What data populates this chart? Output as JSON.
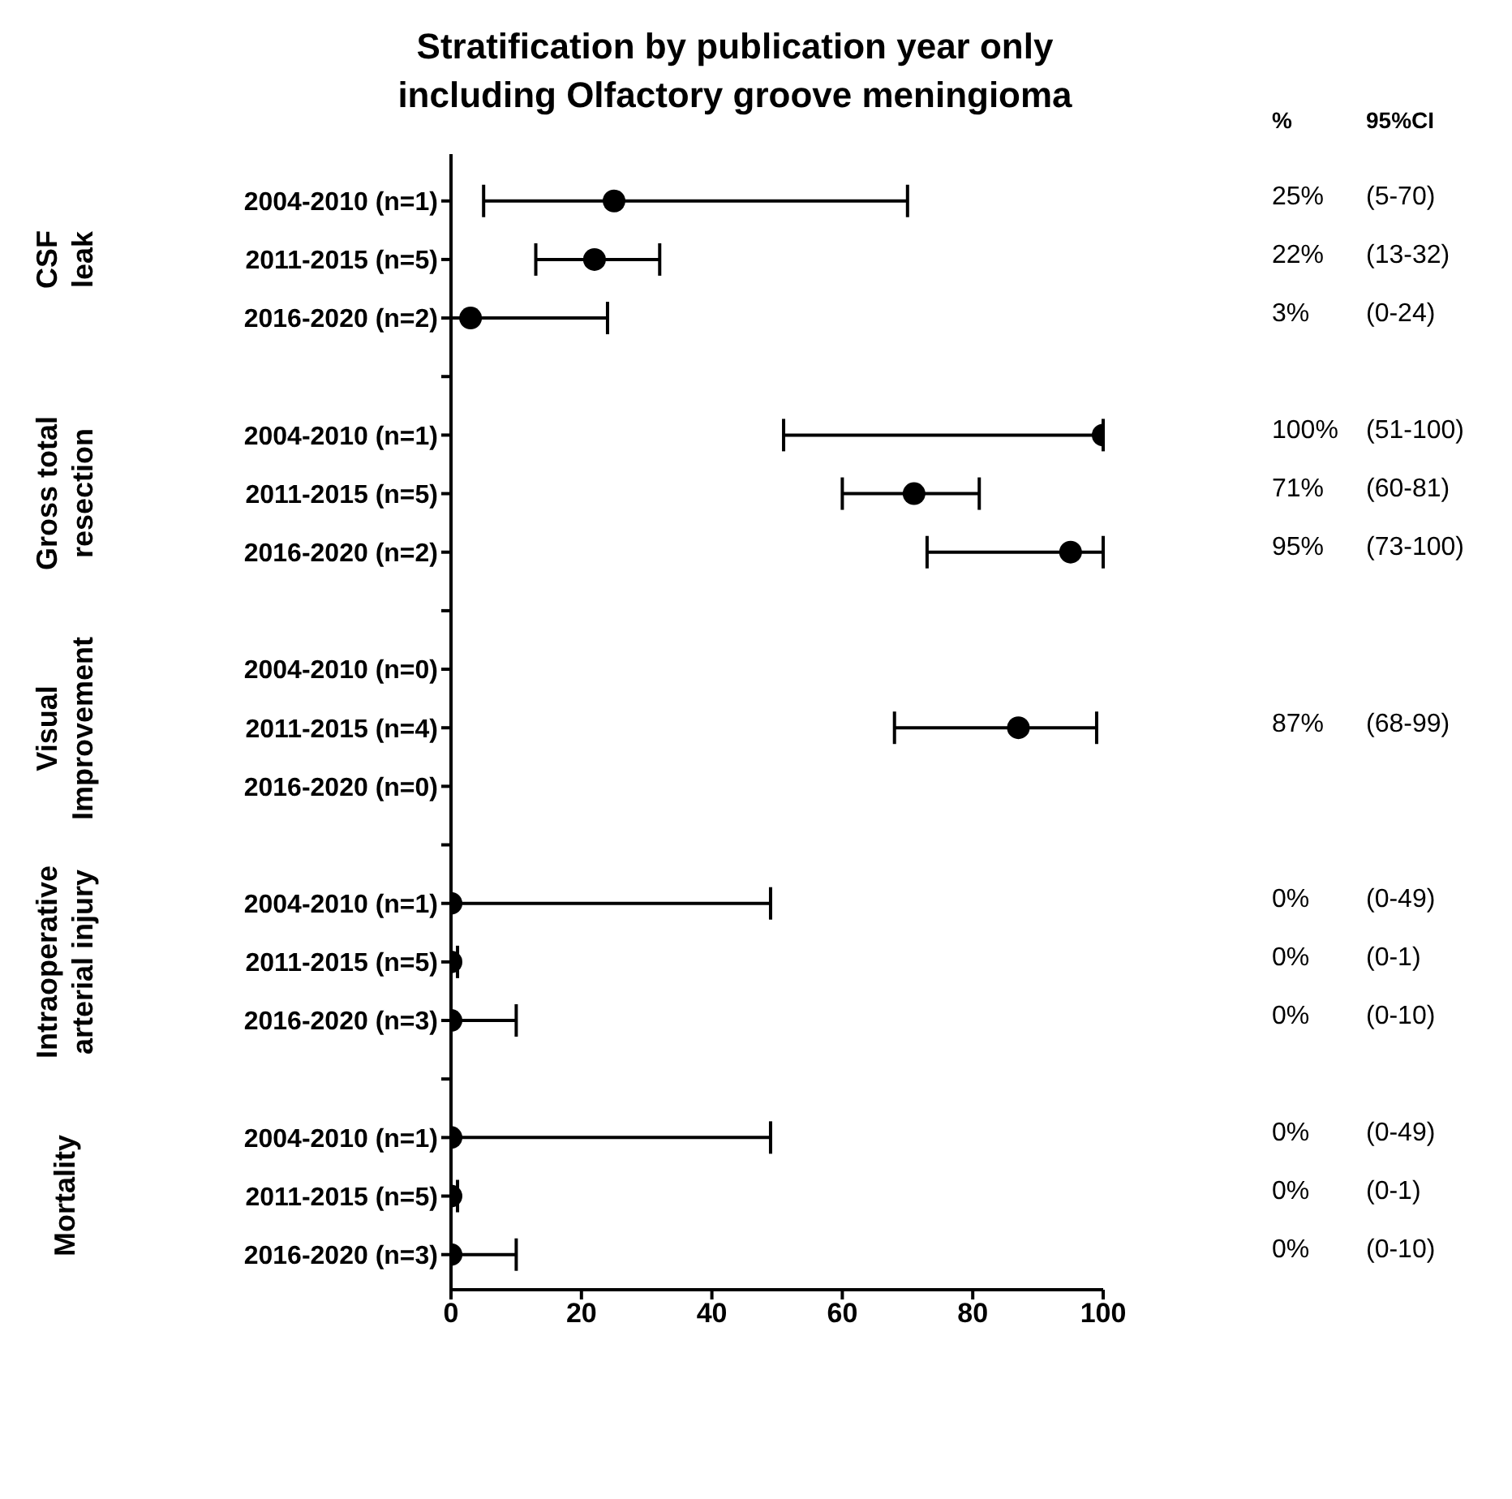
{
  "chart_data": {
    "type": "scatter",
    "orientation": "horizontal",
    "title": "Stratification by publication year only including Olfactory groove meningioma",
    "categories": [
      "2004-2010 (n=1)",
      "2011-2015 (n=5)",
      "2016-2020 (n=2)",
      null,
      "2004-2010 (n=1)",
      "2011-2015 (n=5)",
      "2016-2020 (n=2)",
      null,
      "2004-2010 (n=0)",
      "2011-2015 (n=4)",
      "2016-2020 (n=0)",
      null,
      "2004-2010 (n=1)",
      "2011-2015 (n=5)",
      "2016-2020 (n=3)",
      null,
      "2004-2010 (n=1)",
      "2011-2015 (n=5)",
      "2016-2020 (n=3)"
    ],
    "values": [
      25,
      22,
      3,
      null,
      100,
      71,
      95,
      null,
      null,
      87,
      null,
      null,
      0,
      0,
      0,
      null,
      0,
      0,
      0
    ],
    "errors": [
      [
        5,
        70
      ],
      [
        13,
        32
      ],
      [
        0,
        24
      ],
      null,
      [
        51,
        100
      ],
      [
        60,
        81
      ],
      [
        73,
        100
      ],
      null,
      null,
      [
        68,
        99
      ],
      null,
      null,
      [
        0,
        49
      ],
      [
        0,
        1
      ],
      [
        0,
        10
      ],
      null,
      [
        0,
        49
      ],
      [
        0,
        1
      ],
      [
        0,
        10
      ]
    ],
    "color": "#000000",
    "marker": "circle",
    "xlim": [
      0,
      100
    ],
    "xticks": [
      0,
      20,
      40,
      60,
      80,
      100
    ],
    "annotations": [
      "CSF\nleak",
      "Gross total\nresection",
      "Visual\nImprovement",
      "Intraoperative\narterial injury",
      "Mortality",
      "%",
      "95%CI",
      "25%",
      "22%",
      "3%",
      "100%",
      "71%",
      "95%",
      "87%",
      "0%",
      "0%",
      "0%",
      "0%",
      "0%",
      "0%",
      "(5-70)",
      "(13-32)",
      "(0-24)",
      "(51-100)",
      "(60-81)",
      "(73-100)",
      "(68-99)",
      "(0-49)",
      "(0-1)",
      "(0-10)",
      "(0-49)",
      "(0-1)",
      "(0-10)"
    ]
  }
}
